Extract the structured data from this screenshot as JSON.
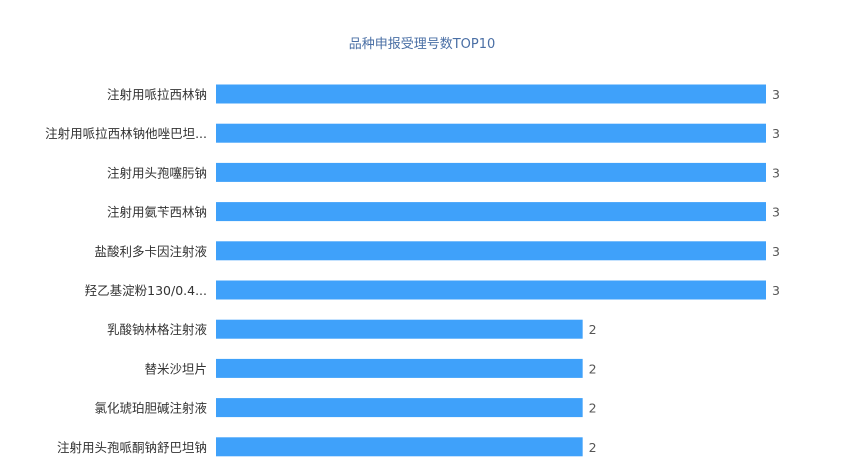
{
  "chart_data": {
    "type": "bar",
    "orientation": "horizontal",
    "title": "品种申报受理号数TOP10",
    "categories": [
      "注射用哌拉西林钠",
      "注射用哌拉西林钠他唑巴坦...",
      "注射用头孢噻肟钠",
      "注射用氨苄西林钠",
      "盐酸利多卡因注射液",
      "羟乙基淀粉130/0.4...",
      "乳酸钠林格注射液",
      "替米沙坦片",
      "氯化琥珀胆碱注射液",
      "注射用头孢哌酮钠舒巴坦钠"
    ],
    "values": [
      3,
      3,
      3,
      3,
      3,
      3,
      2,
      2,
      2,
      2
    ],
    "xlim": [
      0,
      3
    ],
    "grid": false,
    "legend": "none",
    "data_labels": true,
    "bar_color": "#3fa1fa"
  }
}
